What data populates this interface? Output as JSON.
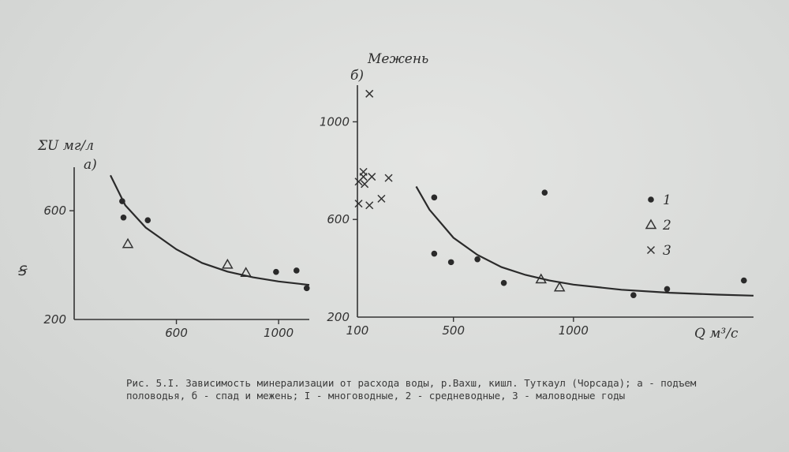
{
  "caption": "Рис. 5.I. Зависимость минерализации от расхода воды, р.Вахш, кишл. Туткаул (Чорсада); а - подъем половодья, б - спад и межень; I - многоводные, 2 - средневодные, 3 - маловодные годы",
  "margin_mark": "Ꞩ",
  "chart_data": [
    {
      "type": "scatter",
      "panel_label": "а)",
      "ylabel": "ΣU мг/л",
      "xlabel": "",
      "xlim": [
        200,
        1120
      ],
      "ylim": [
        200,
        760
      ],
      "x_ticks": [
        600,
        1000
      ],
      "y_ticks": [
        200,
        600
      ],
      "series": [
        {
          "name": "1",
          "marker": "dot",
          "points": [
            [
              388,
              635
            ],
            [
              393,
              575
            ],
            [
              488,
              565
            ],
            [
              990,
              375
            ],
            [
              1070,
              380
            ],
            [
              1110,
              315
            ]
          ]
        },
        {
          "name": "2",
          "marker": "triangle",
          "points": [
            [
              410,
              478
            ],
            [
              800,
              402
            ],
            [
              872,
              372
            ]
          ]
        },
        {
          "name": "fit",
          "marker": "line",
          "points": [
            [
              342,
              730
            ],
            [
              400,
              620
            ],
            [
              480,
              538
            ],
            [
              600,
              458
            ],
            [
              700,
              408
            ],
            [
              800,
              376
            ],
            [
              900,
              355
            ],
            [
              1000,
              340
            ],
            [
              1120,
              327
            ]
          ]
        }
      ]
    },
    {
      "type": "scatter",
      "panel_label": "б)",
      "title": "Межень",
      "ylabel": "",
      "xlabel": "Q м³/с",
      "xlim": [
        100,
        1750
      ],
      "ylim": [
        200,
        1150
      ],
      "x_ticks": [
        100,
        500,
        1000
      ],
      "y_ticks": [
        200,
        600,
        1000
      ],
      "series": [
        {
          "name": "1",
          "marker": "dot",
          "points": [
            [
              420,
              690
            ],
            [
              420,
              460
            ],
            [
              490,
              425
            ],
            [
              600,
              437
            ],
            [
              710,
              340
            ],
            [
              880,
              710
            ],
            [
              1250,
              290
            ],
            [
              1390,
              315
            ],
            [
              1710,
              350
            ]
          ]
        },
        {
          "name": "2",
          "marker": "triangle",
          "points": [
            [
              865,
              355
            ],
            [
              942,
              322
            ]
          ]
        },
        {
          "name": "3",
          "marker": "x",
          "points": [
            [
              150,
              1115
            ],
            [
              105,
              665
            ],
            [
              105,
              755
            ],
            [
              125,
              775
            ],
            [
              125,
              795
            ],
            [
              130,
              745
            ],
            [
              150,
              658
            ],
            [
              160,
              775
            ],
            [
              200,
              685
            ],
            [
              230,
              770
            ]
          ]
        },
        {
          "name": "fit",
          "marker": "line",
          "points": [
            [
              345,
              735
            ],
            [
              400,
              640
            ],
            [
              500,
              525
            ],
            [
              600,
              455
            ],
            [
              700,
              405
            ],
            [
              800,
              373
            ],
            [
              900,
              350
            ],
            [
              1000,
              333
            ],
            [
              1200,
              312
            ],
            [
              1400,
              300
            ],
            [
              1600,
              292
            ],
            [
              1750,
              288
            ]
          ]
        }
      ]
    }
  ],
  "legend": [
    {
      "marker": "dot",
      "label": "1"
    },
    {
      "marker": "triangle",
      "label": "2"
    },
    {
      "marker": "x",
      "label": "3"
    }
  ]
}
